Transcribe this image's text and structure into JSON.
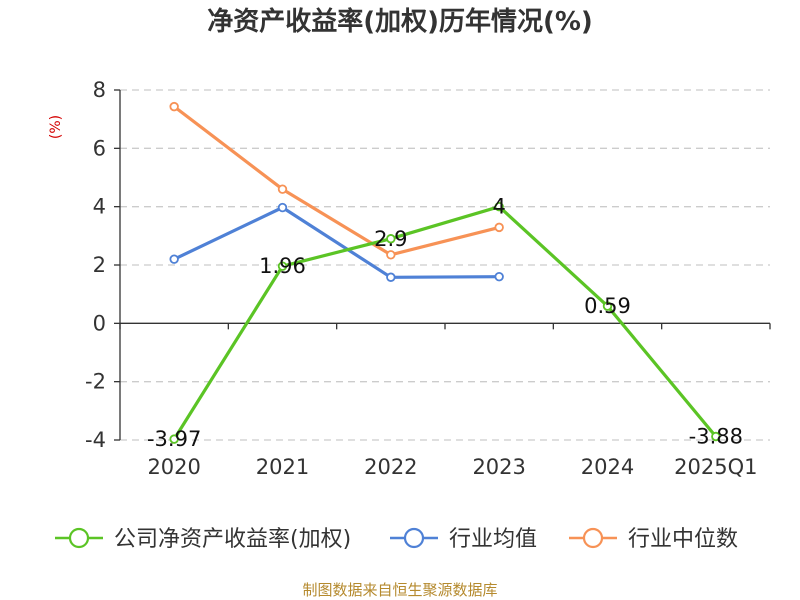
{
  "chart_data": {
    "type": "line",
    "title": "净资产收益率(加权)历年情况(%)",
    "unit_label": "(%)",
    "categories": [
      "2020",
      "2021",
      "2022",
      "2023",
      "2024",
      "2025Q1"
    ],
    "y_ticks": [
      "8",
      "6",
      "4",
      "2",
      "0",
      "-2",
      "-4"
    ],
    "ylim": [
      -4,
      8
    ],
    "grid": true,
    "legend_position": "bottom",
    "series": [
      {
        "name": "公司净资产收益率(加权)",
        "color": "#5bc425",
        "values": [
          -3.97,
          1.96,
          2.9,
          4,
          0.59,
          -3.88
        ],
        "labels": [
          "-3.97",
          "1.96",
          "2.9",
          "4",
          "0.59",
          "-3.88"
        ]
      },
      {
        "name": "行业均值",
        "color": "#4f81d6",
        "values": [
          2.2,
          3.97,
          1.58,
          1.6,
          null,
          null
        ]
      },
      {
        "name": "行业中位数",
        "color": "#f79256",
        "values": [
          7.43,
          4.6,
          2.35,
          3.29,
          null,
          null
        ]
      }
    ],
    "source": "制图数据来自恒生聚源数据库"
  }
}
